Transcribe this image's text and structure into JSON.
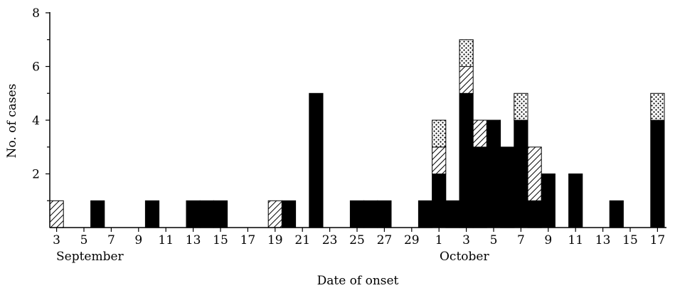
{
  "chart_data": {
    "type": "bar",
    "stacked": true,
    "xlabel": "Date of onset",
    "ylabel": "No. of cases",
    "ylim": [
      0,
      8
    ],
    "yticks": [
      2,
      4,
      6,
      8
    ],
    "grid": false,
    "month_labels": [
      "September",
      "October"
    ],
    "tick_labels": [
      "3",
      "5",
      "7",
      "9",
      "11",
      "13",
      "15",
      "17",
      "19",
      "21",
      "23",
      "25",
      "27",
      "29",
      "1",
      "3",
      "5",
      "7",
      "9",
      "11",
      "13",
      "15",
      "17"
    ],
    "series": [
      {
        "pattern": "solid",
        "color": "#000000"
      },
      {
        "pattern": "hatched",
        "color": "#000000"
      },
      {
        "pattern": "dotted",
        "color": "#000000"
      }
    ],
    "days": [
      {
        "month": "September",
        "day": 3,
        "values": [
          0,
          1,
          0
        ]
      },
      {
        "month": "September",
        "day": 6,
        "values": [
          1,
          0,
          0
        ]
      },
      {
        "month": "September",
        "day": 10,
        "values": [
          1,
          0,
          0
        ]
      },
      {
        "month": "September",
        "day": 13,
        "values": [
          1,
          0,
          0
        ]
      },
      {
        "month": "September",
        "day": 14,
        "values": [
          1,
          0,
          0
        ]
      },
      {
        "month": "September",
        "day": 15,
        "values": [
          1,
          0,
          0
        ]
      },
      {
        "month": "September",
        "day": 19,
        "values": [
          0,
          1,
          0
        ]
      },
      {
        "month": "September",
        "day": 20,
        "values": [
          1,
          0,
          0
        ]
      },
      {
        "month": "September",
        "day": 22,
        "values": [
          5,
          0,
          0
        ]
      },
      {
        "month": "September",
        "day": 25,
        "values": [
          1,
          0,
          0
        ]
      },
      {
        "month": "September",
        "day": 26,
        "values": [
          1,
          0,
          0
        ]
      },
      {
        "month": "September",
        "day": 27,
        "values": [
          1,
          0,
          0
        ]
      },
      {
        "month": "September",
        "day": 30,
        "values": [
          1,
          0,
          0
        ]
      },
      {
        "month": "October",
        "day": 1,
        "values": [
          2,
          1,
          1
        ]
      },
      {
        "month": "October",
        "day": 2,
        "values": [
          1,
          0,
          0
        ]
      },
      {
        "month": "October",
        "day": 3,
        "values": [
          5,
          1,
          1
        ]
      },
      {
        "month": "October",
        "day": 4,
        "values": [
          3,
          1,
          0
        ]
      },
      {
        "month": "October",
        "day": 5,
        "values": [
          4,
          0,
          0
        ]
      },
      {
        "month": "October",
        "day": 6,
        "values": [
          3,
          0,
          0
        ]
      },
      {
        "month": "October",
        "day": 7,
        "values": [
          4,
          0,
          1
        ]
      },
      {
        "month": "October",
        "day": 8,
        "values": [
          1,
          2,
          0
        ]
      },
      {
        "month": "October",
        "day": 9,
        "values": [
          2,
          0,
          0
        ]
      },
      {
        "month": "October",
        "day": 11,
        "values": [
          2,
          0,
          0
        ]
      },
      {
        "month": "October",
        "day": 14,
        "values": [
          1,
          0,
          0
        ]
      },
      {
        "month": "October",
        "day": 17,
        "values": [
          4,
          0,
          1
        ]
      }
    ]
  }
}
